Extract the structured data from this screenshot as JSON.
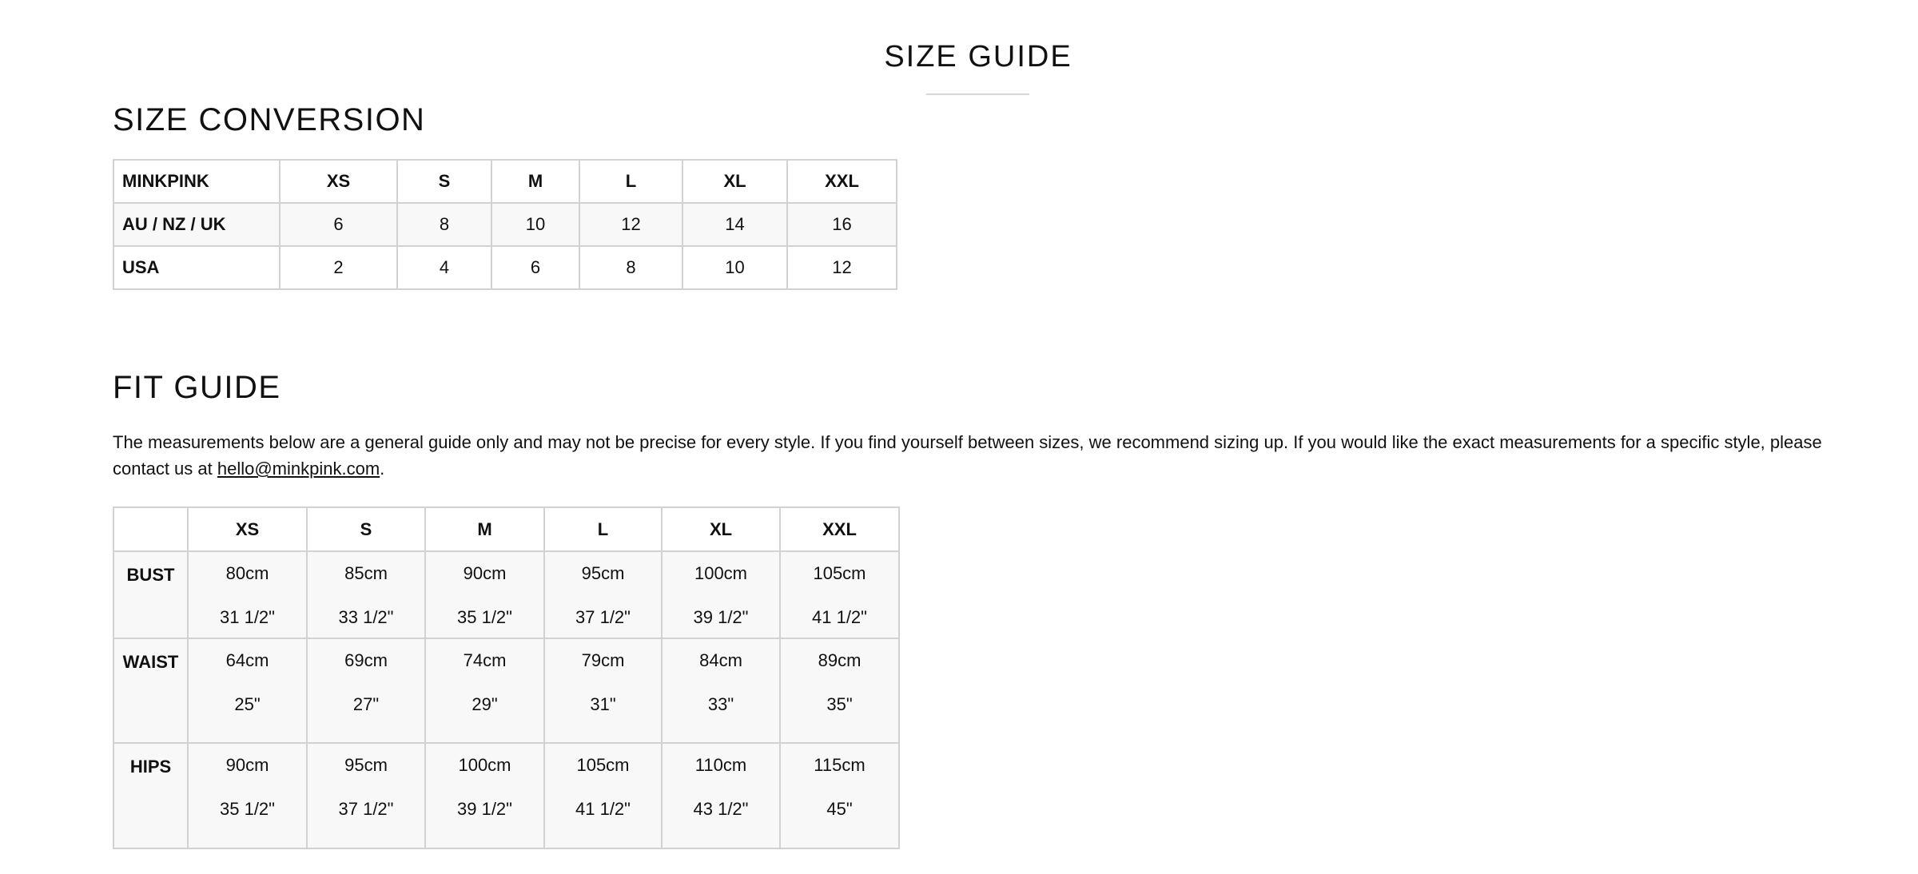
{
  "title": "SIZE GUIDE",
  "conversion": {
    "heading": "SIZE CONVERSION",
    "header": [
      "MINKPINK",
      "XS",
      "S",
      "M",
      "L",
      "XL",
      "XXL"
    ],
    "rows": [
      {
        "label": "AU / NZ / UK",
        "values": [
          "6",
          "8",
          "10",
          "12",
          "14",
          "16"
        ]
      },
      {
        "label": "USA",
        "values": [
          "2",
          "4",
          "6",
          "8",
          "10",
          "12"
        ]
      }
    ]
  },
  "fit": {
    "heading": "FIT GUIDE",
    "text_before": "The measurements below are a general guide only and may not be precise for every style. If you find yourself between sizes, we recommend sizing up. If you would like the exact measurements for a specific style, please contact us at ",
    "email": "hello@minkpink.com",
    "text_after": ".",
    "header": [
      "",
      "XS",
      "S",
      "M",
      "L",
      "XL",
      "XXL"
    ],
    "rows": [
      {
        "label": "BUST",
        "cm": [
          "80cm",
          "85cm",
          "90cm",
          "95cm",
          "100cm",
          "105cm"
        ],
        "in": [
          "31 1/2\"",
          "33 1/2\"",
          "35 1/2\"",
          "37 1/2\"",
          "39 1/2\"",
          "41 1/2\""
        ]
      },
      {
        "label": "WAIST",
        "cm": [
          "64cm",
          "69cm",
          "74cm",
          "79cm",
          "84cm",
          "89cm"
        ],
        "in": [
          "25\"",
          "27\"",
          "29\"",
          "31\"",
          "33\"",
          "35\""
        ]
      },
      {
        "label": "HIPS",
        "cm": [
          "90cm",
          "95cm",
          "100cm",
          "105cm",
          "110cm",
          "115cm"
        ],
        "in": [
          "35 1/2\"",
          "37 1/2\"",
          "39 1/2\"",
          "41 1/2\"",
          "43 1/2\"",
          "45\""
        ]
      }
    ]
  }
}
